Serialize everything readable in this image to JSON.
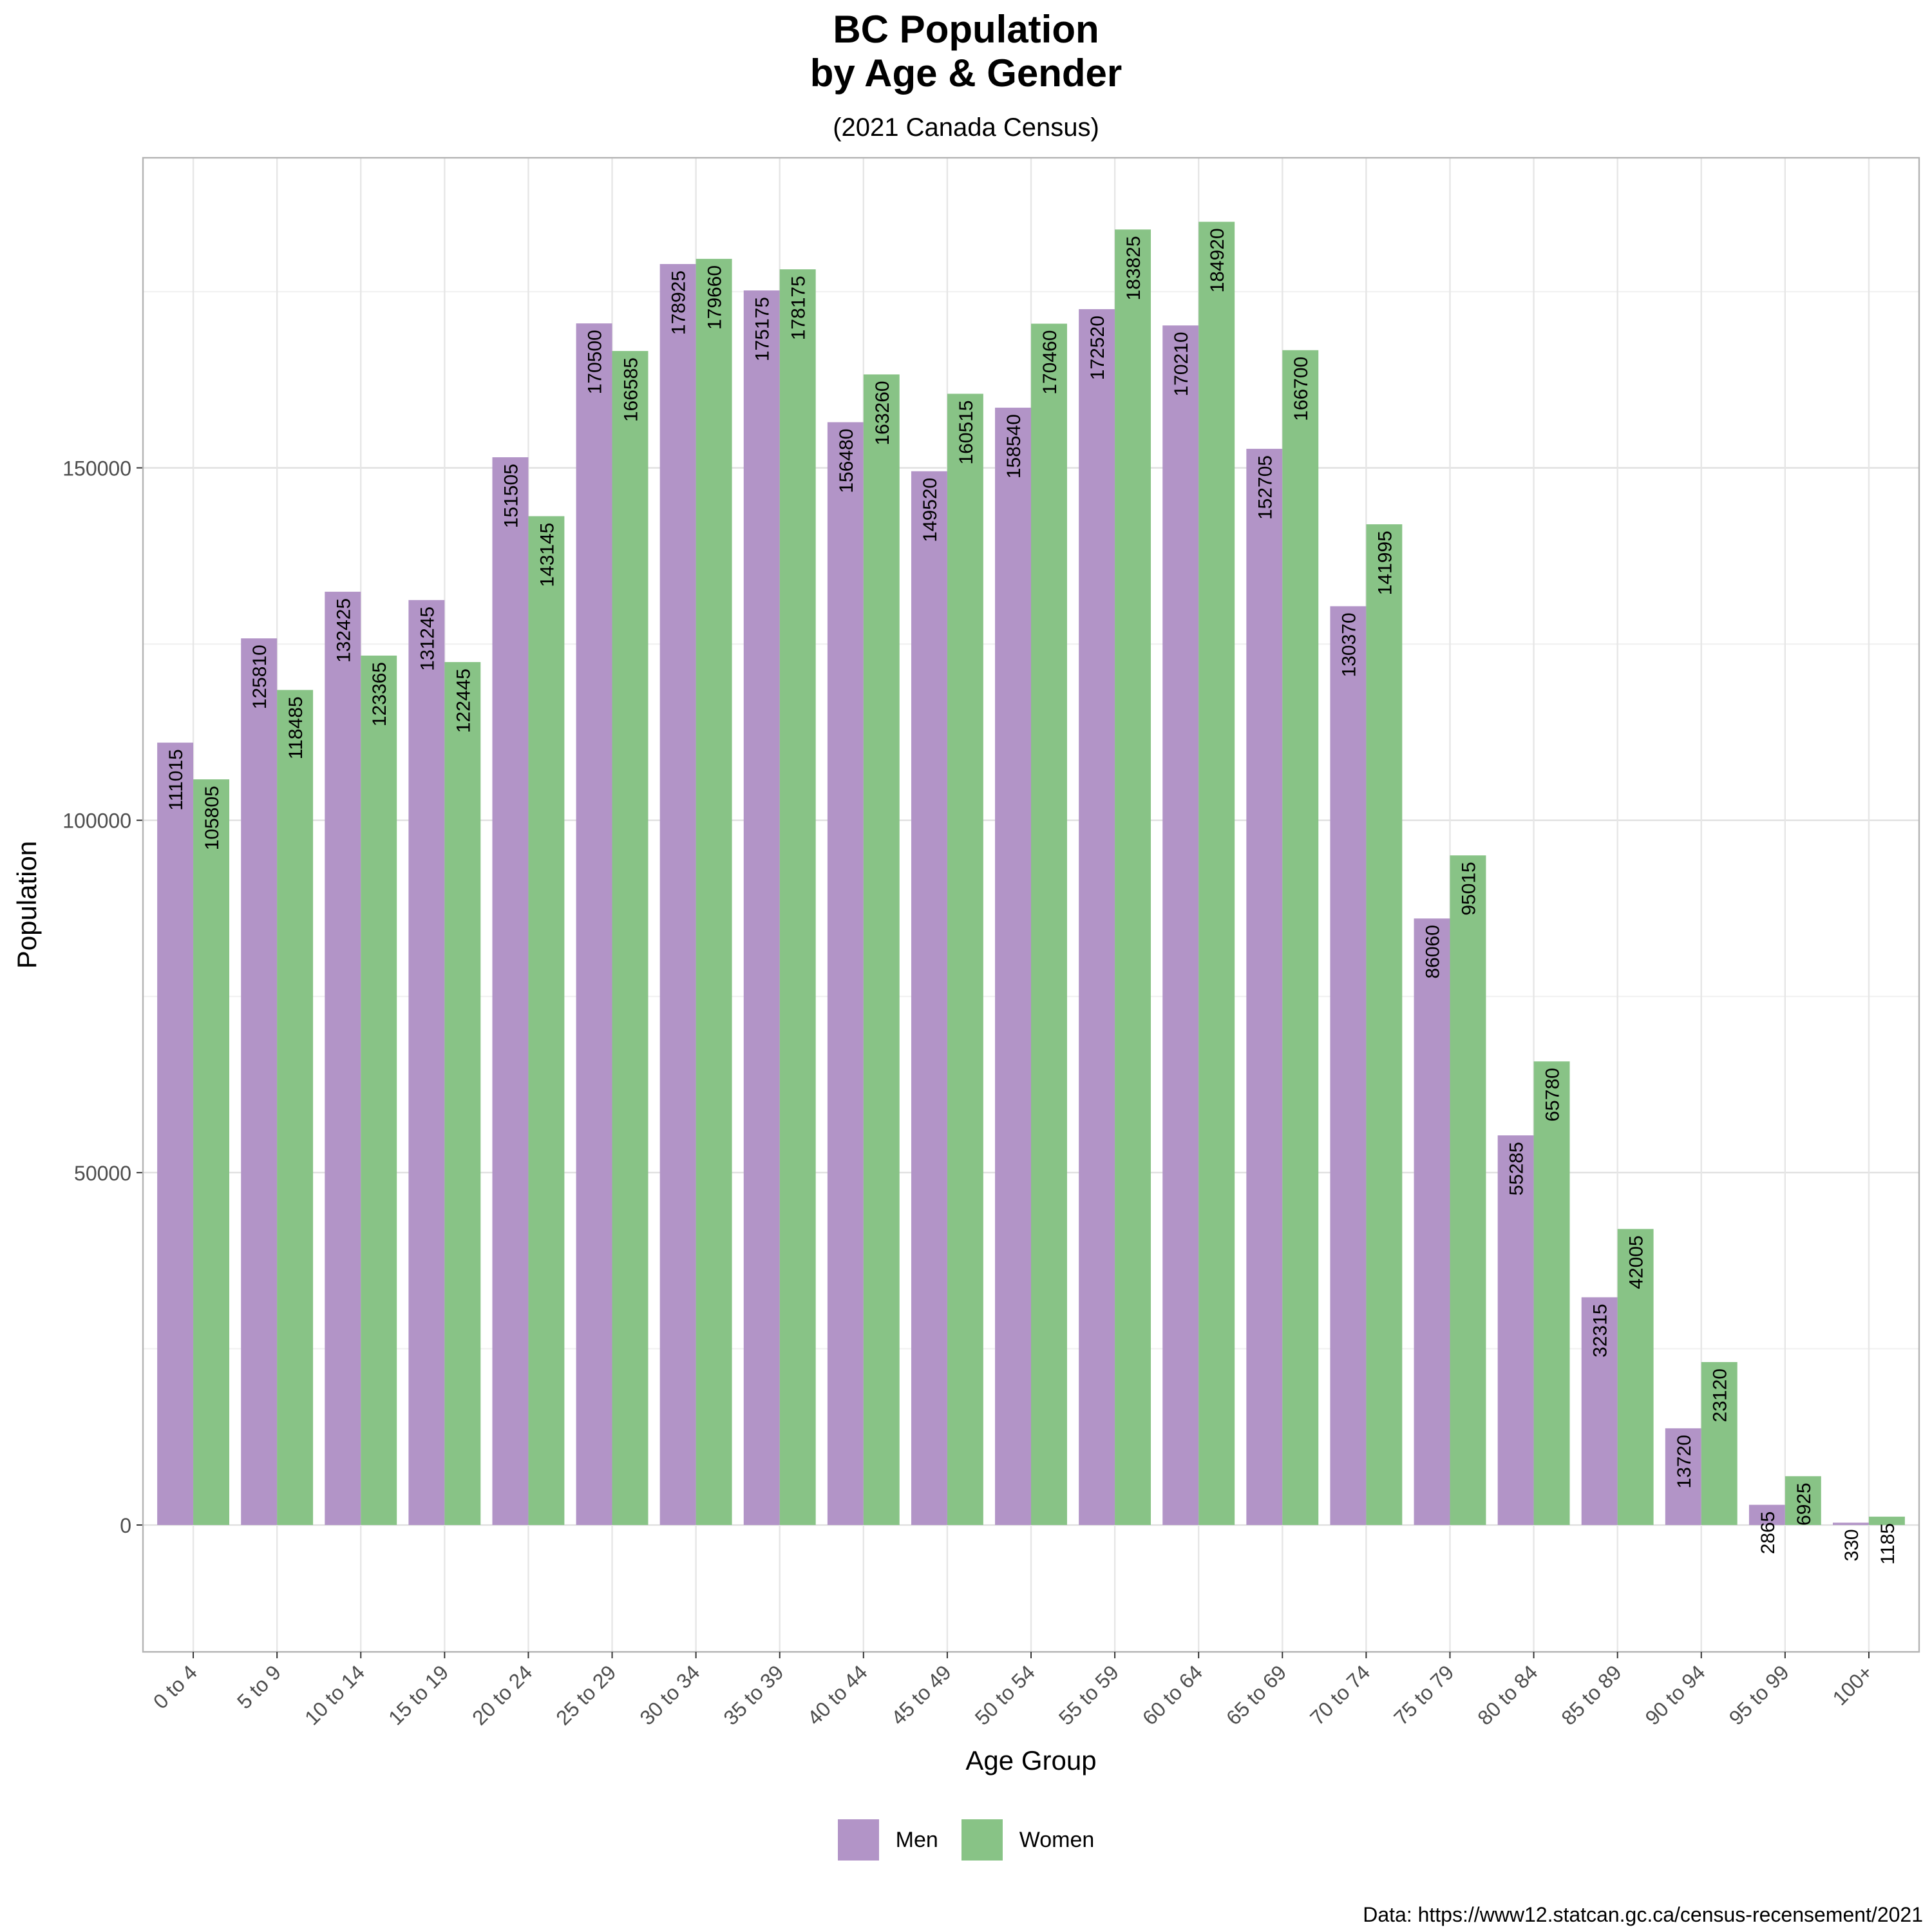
{
  "title_line1": "BC Population",
  "title_line2": "by Age & Gender",
  "subtitle": "(2021 Canada Census)",
  "source": "Data: https://www12.statcan.gc.ca/census-recensement/2021",
  "chart_data": {
    "type": "bar",
    "title": "BC Population by Age & Gender",
    "subtitle": "(2021 Canada Census)",
    "xlabel": "Age Group",
    "ylabel": "Population",
    "ylim": [
      -18000,
      194000
    ],
    "yticks": [
      0,
      50000,
      100000,
      150000
    ],
    "grid": true,
    "legend_position": "bottom",
    "categories": [
      "0 to 4",
      "5 to 9",
      "10 to 14",
      "15 to 19",
      "20 to 24",
      "25 to 29",
      "30 to 34",
      "35 to 39",
      "40 to 44",
      "45 to 49",
      "50 to 54",
      "55 to 59",
      "60 to 64",
      "65 to 69",
      "70 to 74",
      "75 to 79",
      "80 to 84",
      "85 to 89",
      "90 to 94",
      "95 to 99",
      "100+"
    ],
    "series": [
      {
        "name": "Men",
        "color": "#b294c7",
        "values": [
          111015,
          125810,
          132425,
          131245,
          151505,
          170500,
          178925,
          175175,
          156480,
          149520,
          158540,
          172520,
          170210,
          152705,
          130370,
          86060,
          55285,
          32315,
          13720,
          2865,
          330
        ]
      },
      {
        "name": "Women",
        "color": "#88c386",
        "values": [
          105805,
          118485,
          123365,
          122445,
          143145,
          166585,
          179660,
          178175,
          163260,
          160515,
          170460,
          183825,
          184920,
          166700,
          141995,
          95015,
          65780,
          42005,
          23120,
          6925,
          1185
        ]
      }
    ]
  }
}
